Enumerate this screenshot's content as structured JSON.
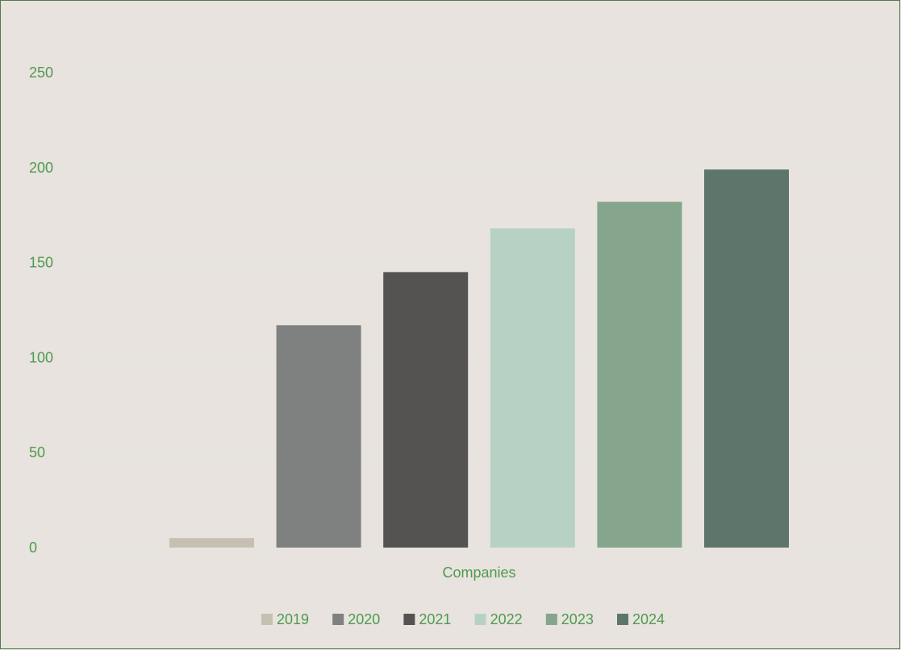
{
  "chart_data": {
    "type": "bar",
    "categories": [
      "Companies"
    ],
    "series": [
      {
        "name": "2019",
        "values": [
          5
        ],
        "color": "#c7bfb2"
      },
      {
        "name": "2020",
        "values": [
          117
        ],
        "color": "#7f8080"
      },
      {
        "name": "2021",
        "values": [
          145
        ],
        "color": "#545352"
      },
      {
        "name": "2022",
        "values": [
          168
        ],
        "color": "#b7d2c4"
      },
      {
        "name": "2023",
        "values": [
          182
        ],
        "color": "#85a58c"
      },
      {
        "name": "2024",
        "values": [
          199
        ],
        "color": "#5e756c"
      }
    ],
    "title": "",
    "xlabel": "",
    "ylabel": "",
    "ylim": [
      0,
      250
    ],
    "yticks": [
      "0",
      "50",
      "100",
      "150",
      "200",
      "250"
    ],
    "grid": true,
    "legend": "bottom",
    "colors": {
      "background": "#e8e3de",
      "border": "#4f7a4f",
      "text": "#4f9a4f",
      "grid": "#dfe9da"
    }
  }
}
